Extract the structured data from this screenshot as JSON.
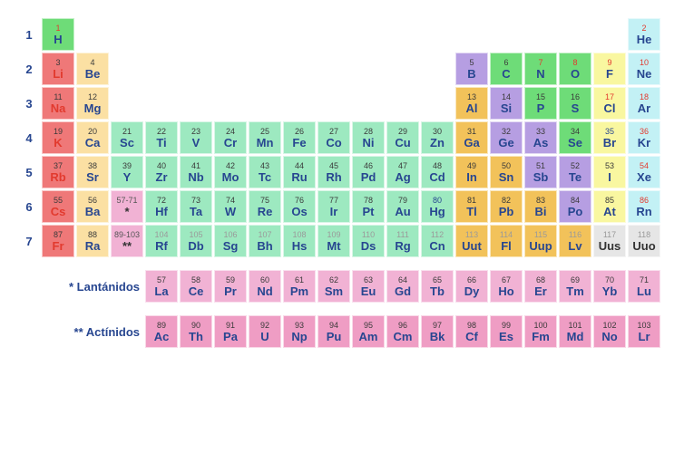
{
  "colors": {
    "alkali": "#ef7878",
    "alkaline": "#fbe0a3",
    "transition": "#9de9c0",
    "post": "#f2c25a",
    "metalloid": "#b69ee2",
    "nonmetal": "#6edc78",
    "halogen": "#f9f7a0",
    "noble": "#c3f1f5",
    "lanthanide": "#f1b2d4",
    "actinide": "#ef9dc4",
    "unknown": "#e6e6e6",
    "num_default": "#3a3a3a",
    "num_red": "#e23a2e",
    "num_blue": "#274690",
    "num_gray": "#9a9a9a",
    "sym_blue": "#274690",
    "sym_red": "#e23a2e",
    "sym_black": "#333333"
  },
  "labels": {
    "lanthanides": "* Lantánidos",
    "actinides": "** Actínidos",
    "lan_range": "57-71",
    "act_range": "89-103"
  },
  "periods": [
    1,
    2,
    3,
    4,
    5,
    6,
    7
  ],
  "elements": [
    {
      "n": 1,
      "s": "H",
      "p": 1,
      "g": 1,
      "cat": "nonmetal",
      "nclr": "num_red",
      "sclr": "sym_blue"
    },
    {
      "n": 2,
      "s": "He",
      "p": 1,
      "g": 18,
      "cat": "noble",
      "nclr": "num_red",
      "sclr": "sym_blue"
    },
    {
      "n": 3,
      "s": "Li",
      "p": 2,
      "g": 1,
      "cat": "alkali",
      "nclr": "num_default",
      "sclr": "sym_red"
    },
    {
      "n": 4,
      "s": "Be",
      "p": 2,
      "g": 2,
      "cat": "alkaline",
      "nclr": "num_default",
      "sclr": "sym_blue"
    },
    {
      "n": 5,
      "s": "B",
      "p": 2,
      "g": 13,
      "cat": "metalloid",
      "nclr": "num_default",
      "sclr": "sym_blue"
    },
    {
      "n": 6,
      "s": "C",
      "p": 2,
      "g": 14,
      "cat": "nonmetal",
      "nclr": "num_default",
      "sclr": "sym_blue"
    },
    {
      "n": 7,
      "s": "N",
      "p": 2,
      "g": 15,
      "cat": "nonmetal",
      "nclr": "num_red",
      "sclr": "sym_blue"
    },
    {
      "n": 8,
      "s": "O",
      "p": 2,
      "g": 16,
      "cat": "nonmetal",
      "nclr": "num_red",
      "sclr": "sym_blue"
    },
    {
      "n": 9,
      "s": "F",
      "p": 2,
      "g": 17,
      "cat": "halogen",
      "nclr": "num_red",
      "sclr": "sym_blue"
    },
    {
      "n": 10,
      "s": "Ne",
      "p": 2,
      "g": 18,
      "cat": "noble",
      "nclr": "num_red",
      "sclr": "sym_blue"
    },
    {
      "n": 11,
      "s": "Na",
      "p": 3,
      "g": 1,
      "cat": "alkali",
      "nclr": "num_default",
      "sclr": "sym_red"
    },
    {
      "n": 12,
      "s": "Mg",
      "p": 3,
      "g": 2,
      "cat": "alkaline",
      "nclr": "num_default",
      "sclr": "sym_blue"
    },
    {
      "n": 13,
      "s": "Al",
      "p": 3,
      "g": 13,
      "cat": "post",
      "nclr": "num_default",
      "sclr": "sym_blue"
    },
    {
      "n": 14,
      "s": "Si",
      "p": 3,
      "g": 14,
      "cat": "metalloid",
      "nclr": "num_default",
      "sclr": "sym_blue"
    },
    {
      "n": 15,
      "s": "P",
      "p": 3,
      "g": 15,
      "cat": "nonmetal",
      "nclr": "num_default",
      "sclr": "sym_blue"
    },
    {
      "n": 16,
      "s": "S",
      "p": 3,
      "g": 16,
      "cat": "nonmetal",
      "nclr": "num_default",
      "sclr": "sym_blue"
    },
    {
      "n": 17,
      "s": "Cl",
      "p": 3,
      "g": 17,
      "cat": "halogen",
      "nclr": "num_red",
      "sclr": "sym_blue"
    },
    {
      "n": 18,
      "s": "Ar",
      "p": 3,
      "g": 18,
      "cat": "noble",
      "nclr": "num_red",
      "sclr": "sym_blue"
    },
    {
      "n": 19,
      "s": "K",
      "p": 4,
      "g": 1,
      "cat": "alkali",
      "nclr": "num_default",
      "sclr": "sym_red"
    },
    {
      "n": 20,
      "s": "Ca",
      "p": 4,
      "g": 2,
      "cat": "alkaline",
      "nclr": "num_default",
      "sclr": "sym_blue"
    },
    {
      "n": 21,
      "s": "Sc",
      "p": 4,
      "g": 3,
      "cat": "transition",
      "nclr": "num_default",
      "sclr": "sym_blue"
    },
    {
      "n": 22,
      "s": "Ti",
      "p": 4,
      "g": 4,
      "cat": "transition",
      "nclr": "num_default",
      "sclr": "sym_blue"
    },
    {
      "n": 23,
      "s": "V",
      "p": 4,
      "g": 5,
      "cat": "transition",
      "nclr": "num_default",
      "sclr": "sym_blue"
    },
    {
      "n": 24,
      "s": "Cr",
      "p": 4,
      "g": 6,
      "cat": "transition",
      "nclr": "num_default",
      "sclr": "sym_blue"
    },
    {
      "n": 25,
      "s": "Mn",
      "p": 4,
      "g": 7,
      "cat": "transition",
      "nclr": "num_default",
      "sclr": "sym_blue"
    },
    {
      "n": 26,
      "s": "Fe",
      "p": 4,
      "g": 8,
      "cat": "transition",
      "nclr": "num_default",
      "sclr": "sym_blue"
    },
    {
      "n": 27,
      "s": "Co",
      "p": 4,
      "g": 9,
      "cat": "transition",
      "nclr": "num_default",
      "sclr": "sym_blue"
    },
    {
      "n": 28,
      "s": "Ni",
      "p": 4,
      "g": 10,
      "cat": "transition",
      "nclr": "num_default",
      "sclr": "sym_blue"
    },
    {
      "n": 29,
      "s": "Cu",
      "p": 4,
      "g": 11,
      "cat": "transition",
      "nclr": "num_default",
      "sclr": "sym_blue"
    },
    {
      "n": 30,
      "s": "Zn",
      "p": 4,
      "g": 12,
      "cat": "transition",
      "nclr": "num_default",
      "sclr": "sym_blue"
    },
    {
      "n": 31,
      "s": "Ga",
      "p": 4,
      "g": 13,
      "cat": "post",
      "nclr": "num_default",
      "sclr": "sym_blue"
    },
    {
      "n": 32,
      "s": "Ge",
      "p": 4,
      "g": 14,
      "cat": "metalloid",
      "nclr": "num_default",
      "sclr": "sym_blue"
    },
    {
      "n": 33,
      "s": "As",
      "p": 4,
      "g": 15,
      "cat": "metalloid",
      "nclr": "num_default",
      "sclr": "sym_blue"
    },
    {
      "n": 34,
      "s": "Se",
      "p": 4,
      "g": 16,
      "cat": "nonmetal",
      "nclr": "num_default",
      "sclr": "sym_blue"
    },
    {
      "n": 35,
      "s": "Br",
      "p": 4,
      "g": 17,
      "cat": "halogen",
      "nclr": "num_blue",
      "sclr": "sym_blue"
    },
    {
      "n": 36,
      "s": "Kr",
      "p": 4,
      "g": 18,
      "cat": "noble",
      "nclr": "num_red",
      "sclr": "sym_blue"
    },
    {
      "n": 37,
      "s": "Rb",
      "p": 5,
      "g": 1,
      "cat": "alkali",
      "nclr": "num_default",
      "sclr": "sym_red"
    },
    {
      "n": 38,
      "s": "Sr",
      "p": 5,
      "g": 2,
      "cat": "alkaline",
      "nclr": "num_default",
      "sclr": "sym_blue"
    },
    {
      "n": 39,
      "s": "Y",
      "p": 5,
      "g": 3,
      "cat": "transition",
      "nclr": "num_default",
      "sclr": "sym_blue"
    },
    {
      "n": 40,
      "s": "Zr",
      "p": 5,
      "g": 4,
      "cat": "transition",
      "nclr": "num_default",
      "sclr": "sym_blue"
    },
    {
      "n": 41,
      "s": "Nb",
      "p": 5,
      "g": 5,
      "cat": "transition",
      "nclr": "num_default",
      "sclr": "sym_blue"
    },
    {
      "n": 42,
      "s": "Mo",
      "p": 5,
      "g": 6,
      "cat": "transition",
      "nclr": "num_default",
      "sclr": "sym_blue"
    },
    {
      "n": 43,
      "s": "Tc",
      "p": 5,
      "g": 7,
      "cat": "transition",
      "nclr": "num_default",
      "sclr": "sym_blue"
    },
    {
      "n": 44,
      "s": "Ru",
      "p": 5,
      "g": 8,
      "cat": "transition",
      "nclr": "num_default",
      "sclr": "sym_blue"
    },
    {
      "n": 45,
      "s": "Rh",
      "p": 5,
      "g": 9,
      "cat": "transition",
      "nclr": "num_default",
      "sclr": "sym_blue"
    },
    {
      "n": 46,
      "s": "Pd",
      "p": 5,
      "g": 10,
      "cat": "transition",
      "nclr": "num_default",
      "sclr": "sym_blue"
    },
    {
      "n": 47,
      "s": "Ag",
      "p": 5,
      "g": 11,
      "cat": "transition",
      "nclr": "num_default",
      "sclr": "sym_blue"
    },
    {
      "n": 48,
      "s": "Cd",
      "p": 5,
      "g": 12,
      "cat": "transition",
      "nclr": "num_default",
      "sclr": "sym_blue"
    },
    {
      "n": 49,
      "s": "In",
      "p": 5,
      "g": 13,
      "cat": "post",
      "nclr": "num_default",
      "sclr": "sym_blue"
    },
    {
      "n": 50,
      "s": "Sn",
      "p": 5,
      "g": 14,
      "cat": "post",
      "nclr": "num_default",
      "sclr": "sym_blue"
    },
    {
      "n": 51,
      "s": "Sb",
      "p": 5,
      "g": 15,
      "cat": "metalloid",
      "nclr": "num_default",
      "sclr": "sym_blue"
    },
    {
      "n": 52,
      "s": "Te",
      "p": 5,
      "g": 16,
      "cat": "metalloid",
      "nclr": "num_default",
      "sclr": "sym_blue"
    },
    {
      "n": 53,
      "s": "I",
      "p": 5,
      "g": 17,
      "cat": "halogen",
      "nclr": "num_default",
      "sclr": "sym_blue"
    },
    {
      "n": 54,
      "s": "Xe",
      "p": 5,
      "g": 18,
      "cat": "noble",
      "nclr": "num_red",
      "sclr": "sym_blue"
    },
    {
      "n": 55,
      "s": "Cs",
      "p": 6,
      "g": 1,
      "cat": "alkali",
      "nclr": "num_default",
      "sclr": "sym_red"
    },
    {
      "n": 56,
      "s": "Ba",
      "p": 6,
      "g": 2,
      "cat": "alkaline",
      "nclr": "num_default",
      "sclr": "sym_blue"
    },
    {
      "n": 72,
      "s": "Hf",
      "p": 6,
      "g": 4,
      "cat": "transition",
      "nclr": "num_default",
      "sclr": "sym_blue"
    },
    {
      "n": 73,
      "s": "Ta",
      "p": 6,
      "g": 5,
      "cat": "transition",
      "nclr": "num_default",
      "sclr": "sym_blue"
    },
    {
      "n": 74,
      "s": "W",
      "p": 6,
      "g": 6,
      "cat": "transition",
      "nclr": "num_default",
      "sclr": "sym_blue"
    },
    {
      "n": 75,
      "s": "Re",
      "p": 6,
      "g": 7,
      "cat": "transition",
      "nclr": "num_default",
      "sclr": "sym_blue"
    },
    {
      "n": 76,
      "s": "Os",
      "p": 6,
      "g": 8,
      "cat": "transition",
      "nclr": "num_default",
      "sclr": "sym_blue"
    },
    {
      "n": 77,
      "s": "Ir",
      "p": 6,
      "g": 9,
      "cat": "transition",
      "nclr": "num_default",
      "sclr": "sym_blue"
    },
    {
      "n": 78,
      "s": "Pt",
      "p": 6,
      "g": 10,
      "cat": "transition",
      "nclr": "num_default",
      "sclr": "sym_blue"
    },
    {
      "n": 79,
      "s": "Au",
      "p": 6,
      "g": 11,
      "cat": "transition",
      "nclr": "num_default",
      "sclr": "sym_blue"
    },
    {
      "n": 80,
      "s": "Hg",
      "p": 6,
      "g": 12,
      "cat": "transition",
      "nclr": "num_blue",
      "sclr": "sym_blue"
    },
    {
      "n": 81,
      "s": "Tl",
      "p": 6,
      "g": 13,
      "cat": "post",
      "nclr": "num_default",
      "sclr": "sym_blue"
    },
    {
      "n": 82,
      "s": "Pb",
      "p": 6,
      "g": 14,
      "cat": "post",
      "nclr": "num_default",
      "sclr": "sym_blue"
    },
    {
      "n": 83,
      "s": "Bi",
      "p": 6,
      "g": 15,
      "cat": "post",
      "nclr": "num_default",
      "sclr": "sym_blue"
    },
    {
      "n": 84,
      "s": "Po",
      "p": 6,
      "g": 16,
      "cat": "metalloid",
      "nclr": "num_default",
      "sclr": "sym_blue"
    },
    {
      "n": 85,
      "s": "At",
      "p": 6,
      "g": 17,
      "cat": "halogen",
      "nclr": "num_default",
      "sclr": "sym_blue"
    },
    {
      "n": 86,
      "s": "Rn",
      "p": 6,
      "g": 18,
      "cat": "noble",
      "nclr": "num_red",
      "sclr": "sym_blue"
    },
    {
      "n": 87,
      "s": "Fr",
      "p": 7,
      "g": 1,
      "cat": "alkali",
      "nclr": "num_default",
      "sclr": "sym_red"
    },
    {
      "n": 88,
      "s": "Ra",
      "p": 7,
      "g": 2,
      "cat": "alkaline",
      "nclr": "num_default",
      "sclr": "sym_blue"
    },
    {
      "n": 104,
      "s": "Rf",
      "p": 7,
      "g": 4,
      "cat": "transition",
      "nclr": "num_gray",
      "sclr": "sym_blue"
    },
    {
      "n": 105,
      "s": "Db",
      "p": 7,
      "g": 5,
      "cat": "transition",
      "nclr": "num_gray",
      "sclr": "sym_blue"
    },
    {
      "n": 106,
      "s": "Sg",
      "p": 7,
      "g": 6,
      "cat": "transition",
      "nclr": "num_gray",
      "sclr": "sym_blue"
    },
    {
      "n": 107,
      "s": "Bh",
      "p": 7,
      "g": 7,
      "cat": "transition",
      "nclr": "num_gray",
      "sclr": "sym_blue"
    },
    {
      "n": 108,
      "s": "Hs",
      "p": 7,
      "g": 8,
      "cat": "transition",
      "nclr": "num_gray",
      "sclr": "sym_blue"
    },
    {
      "n": 109,
      "s": "Mt",
      "p": 7,
      "g": 9,
      "cat": "transition",
      "nclr": "num_gray",
      "sclr": "sym_blue"
    },
    {
      "n": 110,
      "s": "Ds",
      "p": 7,
      "g": 10,
      "cat": "transition",
      "nclr": "num_gray",
      "sclr": "sym_blue"
    },
    {
      "n": 111,
      "s": "Rg",
      "p": 7,
      "g": 11,
      "cat": "transition",
      "nclr": "num_gray",
      "sclr": "sym_blue"
    },
    {
      "n": 112,
      "s": "Cn",
      "p": 7,
      "g": 12,
      "cat": "transition",
      "nclr": "num_gray",
      "sclr": "sym_blue"
    },
    {
      "n": 113,
      "s": "Uut",
      "p": 7,
      "g": 13,
      "cat": "post",
      "nclr": "num_gray",
      "sclr": "sym_blue"
    },
    {
      "n": 114,
      "s": "Fl",
      "p": 7,
      "g": 14,
      "cat": "post",
      "nclr": "num_gray",
      "sclr": "sym_blue"
    },
    {
      "n": 115,
      "s": "Uup",
      "p": 7,
      "g": 15,
      "cat": "post",
      "nclr": "num_gray",
      "sclr": "sym_blue"
    },
    {
      "n": 116,
      "s": "Lv",
      "p": 7,
      "g": 16,
      "cat": "post",
      "nclr": "num_gray",
      "sclr": "sym_blue"
    },
    {
      "n": 117,
      "s": "Uus",
      "p": 7,
      "g": 17,
      "cat": "unknown",
      "nclr": "num_gray",
      "sclr": "sym_black"
    },
    {
      "n": 118,
      "s": "Uuo",
      "p": 7,
      "g": 18,
      "cat": "unknown",
      "nclr": "num_gray",
      "sclr": "sym_black"
    }
  ],
  "lanthanides": [
    {
      "n": 57,
      "s": "La"
    },
    {
      "n": 58,
      "s": "Ce"
    },
    {
      "n": 59,
      "s": "Pr"
    },
    {
      "n": 60,
      "s": "Nd"
    },
    {
      "n": 61,
      "s": "Pm"
    },
    {
      "n": 62,
      "s": "Sm"
    },
    {
      "n": 63,
      "s": "Eu"
    },
    {
      "n": 64,
      "s": "Gd"
    },
    {
      "n": 65,
      "s": "Tb"
    },
    {
      "n": 66,
      "s": "Dy"
    },
    {
      "n": 67,
      "s": "Ho"
    },
    {
      "n": 68,
      "s": "Er"
    },
    {
      "n": 69,
      "s": "Tm"
    },
    {
      "n": 70,
      "s": "Yb"
    },
    {
      "n": 71,
      "s": "Lu"
    }
  ],
  "actinides": [
    {
      "n": 89,
      "s": "Ac"
    },
    {
      "n": 90,
      "s": "Th"
    },
    {
      "n": 91,
      "s": "Pa"
    },
    {
      "n": 92,
      "s": "U"
    },
    {
      "n": 93,
      "s": "Np"
    },
    {
      "n": 94,
      "s": "Pu"
    },
    {
      "n": 95,
      "s": "Am"
    },
    {
      "n": 96,
      "s": "Cm"
    },
    {
      "n": 97,
      "s": "Bk"
    },
    {
      "n": 98,
      "s": "Cf"
    },
    {
      "n": 99,
      "s": "Es"
    },
    {
      "n": 100,
      "s": "Fm"
    },
    {
      "n": 101,
      "s": "Md"
    },
    {
      "n": 102,
      "s": "No"
    },
    {
      "n": 103,
      "s": "Lr"
    }
  ]
}
